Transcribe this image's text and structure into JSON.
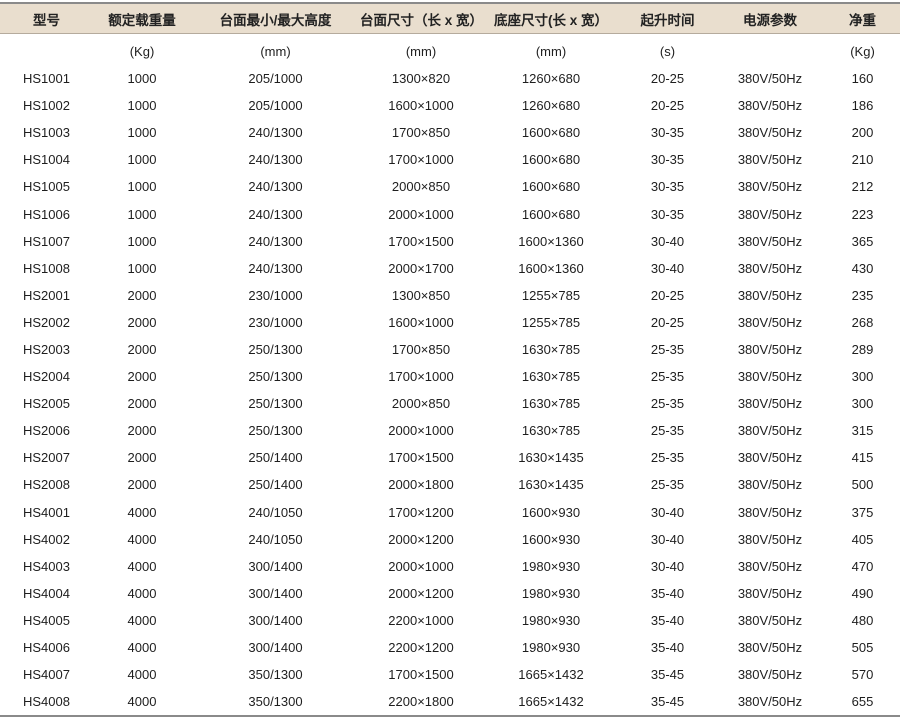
{
  "table": {
    "headers": [
      "型号",
      "额定载重量",
      "台面最小/最大高度",
      "台面尺寸（长 x 宽）",
      "底座尺寸(长 x 宽）",
      "起升时间",
      "电源参数",
      "净重"
    ],
    "units": [
      "",
      "(Kg)",
      "(mm)",
      "(mm)",
      "(mm)",
      "(s)",
      "",
      "(Kg)"
    ],
    "rows": [
      [
        "HS1001",
        "1000",
        "205/1000",
        "1300×820",
        "1260×680",
        "20-25",
        "380V/50Hz",
        "160"
      ],
      [
        "HS1002",
        "1000",
        "205/1000",
        "1600×1000",
        "1260×680",
        "20-25",
        "380V/50Hz",
        "186"
      ],
      [
        "HS1003",
        "1000",
        "240/1300",
        "1700×850",
        "1600×680",
        "30-35",
        "380V/50Hz",
        "200"
      ],
      [
        "HS1004",
        "1000",
        "240/1300",
        "1700×1000",
        "1600×680",
        "30-35",
        "380V/50Hz",
        "210"
      ],
      [
        "HS1005",
        "1000",
        "240/1300",
        "2000×850",
        "1600×680",
        "30-35",
        "380V/50Hz",
        "212"
      ],
      [
        "HS1006",
        "1000",
        "240/1300",
        "2000×1000",
        "1600×680",
        "30-35",
        "380V/50Hz",
        "223"
      ],
      [
        "HS1007",
        "1000",
        "240/1300",
        "1700×1500",
        "1600×1360",
        "30-40",
        "380V/50Hz",
        "365"
      ],
      [
        "HS1008",
        "1000",
        "240/1300",
        "2000×1700",
        "1600×1360",
        "30-40",
        "380V/50Hz",
        "430"
      ],
      [
        "HS2001",
        "2000",
        "230/1000",
        "1300×850",
        "1255×785",
        "20-25",
        "380V/50Hz",
        "235"
      ],
      [
        "HS2002",
        "2000",
        "230/1000",
        "1600×1000",
        "1255×785",
        "20-25",
        "380V/50Hz",
        "268"
      ],
      [
        "HS2003",
        "2000",
        "250/1300",
        "1700×850",
        "1630×785",
        "25-35",
        "380V/50Hz",
        "289"
      ],
      [
        "HS2004",
        "2000",
        "250/1300",
        "1700×1000",
        "1630×785",
        "25-35",
        "380V/50Hz",
        "300"
      ],
      [
        "HS2005",
        "2000",
        "250/1300",
        "2000×850",
        "1630×785",
        "25-35",
        "380V/50Hz",
        "300"
      ],
      [
        "HS2006",
        "2000",
        "250/1300",
        "2000×1000",
        "1630×785",
        "25-35",
        "380V/50Hz",
        "315"
      ],
      [
        "HS2007",
        "2000",
        "250/1400",
        "1700×1500",
        "1630×1435",
        "25-35",
        "380V/50Hz",
        "415"
      ],
      [
        "HS2008",
        "2000",
        "250/1400",
        "2000×1800",
        "1630×1435",
        "25-35",
        "380V/50Hz",
        "500"
      ],
      [
        "HS4001",
        "4000",
        "240/1050",
        "1700×1200",
        "1600×930",
        "30-40",
        "380V/50Hz",
        "375"
      ],
      [
        "HS4002",
        "4000",
        "240/1050",
        "2000×1200",
        "1600×930",
        "30-40",
        "380V/50Hz",
        "405"
      ],
      [
        "HS4003",
        "4000",
        "300/1400",
        "2000×1000",
        "1980×930",
        "30-40",
        "380V/50Hz",
        "470"
      ],
      [
        "HS4004",
        "4000",
        "300/1400",
        "2000×1200",
        "1980×930",
        "35-40",
        "380V/50Hz",
        "490"
      ],
      [
        "HS4005",
        "4000",
        "300/1400",
        "2200×1000",
        "1980×930",
        "35-40",
        "380V/50Hz",
        "480"
      ],
      [
        "HS4006",
        "4000",
        "300/1400",
        "2200×1200",
        "1980×930",
        "35-40",
        "380V/50Hz",
        "505"
      ],
      [
        "HS4007",
        "4000",
        "350/1300",
        "1700×1500",
        "1665×1432",
        "35-45",
        "380V/50Hz",
        "570"
      ],
      [
        "HS4008",
        "4000",
        "350/1300",
        "2200×1800",
        "1665×1432",
        "35-45",
        "380V/50Hz",
        "655"
      ]
    ]
  },
  "colors": {
    "header_bg": "#e9dece",
    "text": "#1e1e1e",
    "rule": "#8a8a8a"
  }
}
